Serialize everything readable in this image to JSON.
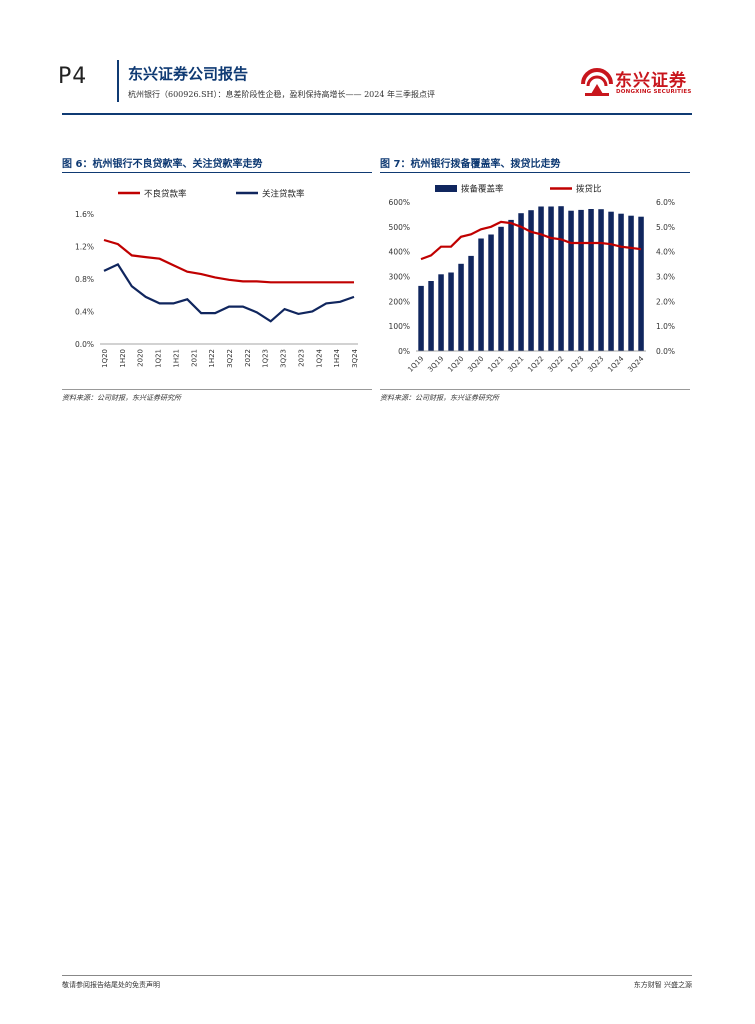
{
  "header": {
    "page_number": "P4",
    "brand": "东兴证券公司报告",
    "subtitle": "杭州银行（600926.SH）：息差阶段性企稳，盈利保持高增长—— 2024 年三季报点评",
    "logo_cn": "东兴证券",
    "logo_en": "DONGXING SECURITIES",
    "brand_color": "#0f3a73",
    "logo_color": "#c8161d"
  },
  "figures": [
    {
      "title": "图 6：杭州银行不良贷款率、关注贷款率走势",
      "source": "资料来源：公司财报，东兴证券研究所"
    },
    {
      "title": "图 7：杭州银行拨备覆盖率、拨贷比走势",
      "source": "资料来源：公司财报，东兴证券研究所"
    }
  ],
  "chart_data": [
    {
      "type": "line",
      "categories": [
        "1Q20",
        "1H20",
        "3Q20",
        "2020",
        "1Q21",
        "1H21",
        "3Q21",
        "2021",
        "1Q22",
        "1H22",
        "3Q22",
        "2022",
        "1Q23",
        "1H23",
        "3Q23",
        "2023",
        "1Q24",
        "1H24",
        "3Q24"
      ],
      "category_labels": [
        "1Q20",
        "1H20",
        "2020",
        "1Q21",
        "1H21",
        "2021",
        "1H22",
        "3Q22",
        "2022",
        "1Q23",
        "3Q23",
        "2023",
        "1Q24",
        "1H24",
        "3Q24"
      ],
      "yticks": [
        "0.0%",
        "0.4%",
        "0.8%",
        "1.2%",
        "1.6%"
      ],
      "ylim": [
        0,
        1.6
      ],
      "legend_position": "top",
      "grid": false,
      "series": [
        {
          "name": "不良贷款率",
          "color": "#c00000",
          "values": [
            1.28,
            1.23,
            1.09,
            1.07,
            1.05,
            0.97,
            0.89,
            0.86,
            0.82,
            0.79,
            0.77,
            0.77,
            0.76,
            0.76,
            0.76,
            0.76,
            0.76,
            0.76,
            0.76
          ]
        },
        {
          "name": "关注贷款率",
          "color": "#10265e",
          "values": [
            0.9,
            0.98,
            0.71,
            0.58,
            0.5,
            0.5,
            0.55,
            0.38,
            0.38,
            0.46,
            0.46,
            0.39,
            0.28,
            0.43,
            0.37,
            0.4,
            0.5,
            0.52,
            0.58
          ]
        }
      ]
    },
    {
      "type": "bar+line",
      "categories": [
        "1Q19",
        "1H19",
        "3Q19",
        "2019",
        "1Q20",
        "1H20",
        "3Q20",
        "2020",
        "1Q21",
        "1H21",
        "3Q21",
        "2021",
        "1Q22",
        "1H22",
        "3Q22",
        "2022",
        "1Q23",
        "1H23",
        "3Q23",
        "2023",
        "1Q24",
        "1H24",
        "3Q24"
      ],
      "category_labels": [
        "1Q19",
        "3Q19",
        "1Q20",
        "3Q20",
        "1Q21",
        "3Q21",
        "1Q22",
        "3Q22",
        "1Q23",
        "3Q23",
        "1Q24",
        "3Q24"
      ],
      "yticks_left": [
        "0%",
        "100%",
        "200%",
        "300%",
        "400%",
        "500%",
        "600%"
      ],
      "yticks_right": [
        "0.0%",
        "1.0%",
        "2.0%",
        "3.0%",
        "4.0%",
        "5.0%",
        "6.0%"
      ],
      "ylim_left": [
        0,
        600
      ],
      "ylim_right": [
        0,
        6
      ],
      "legend_position": "top",
      "grid": false,
      "bars": {
        "name": "拨备覆盖率",
        "color": "#10265e",
        "values": [
          262,
          282,
          309,
          316,
          351,
          383,
          453,
          469,
          500,
          528,
          555,
          567,
          582,
          582,
          583,
          565,
          568,
          572,
          571,
          561,
          553,
          545,
          541
        ]
      },
      "line": {
        "name": "拨贷比",
        "color": "#c00000",
        "values": [
          3.7,
          3.85,
          4.2,
          4.2,
          4.6,
          4.7,
          4.9,
          5.0,
          5.2,
          5.15,
          5.0,
          4.8,
          4.7,
          4.55,
          4.5,
          4.35,
          4.35,
          4.35,
          4.35,
          4.3,
          4.2,
          4.15,
          4.1
        ]
      }
    }
  ],
  "footer": {
    "left": "敬请参阅报告结尾处的免责声明",
    "right": "东方财智 兴盛之源"
  }
}
